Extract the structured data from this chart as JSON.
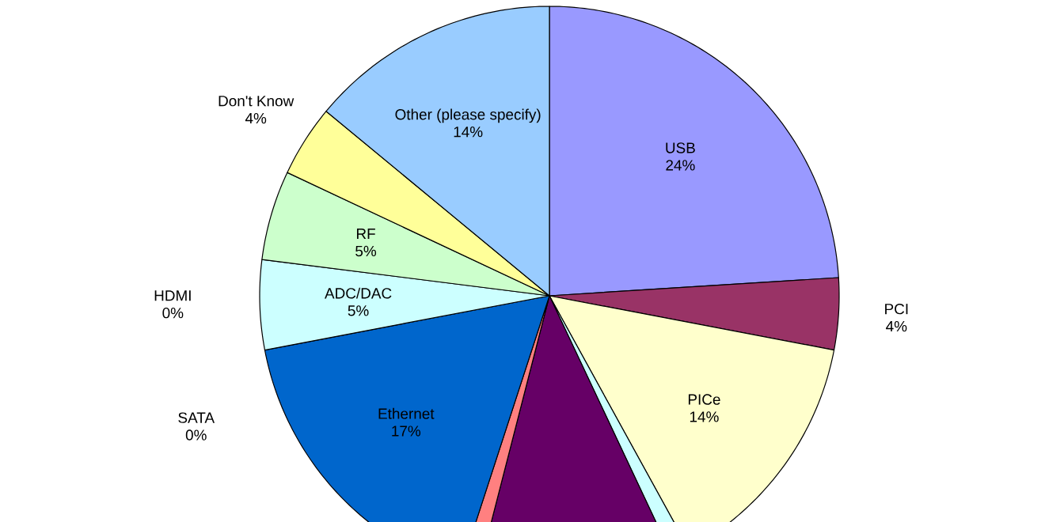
{
  "chart_data": {
    "type": "pie",
    "value_labels": [
      "24%",
      "4%",
      "14%",
      null,
      null,
      null,
      "17%",
      "0%",
      "0%",
      "5%",
      "5%",
      "4%",
      "14%"
    ],
    "categories": [
      "USB",
      "PCI",
      "PICe",
      null,
      null,
      null,
      "Ethernet",
      "SATA",
      "HDMI",
      "ADC/DAC",
      "RF",
      "Don't Know",
      "Other (please specify)"
    ],
    "values": [
      24,
      4,
      14,
      1,
      11,
      1,
      17,
      0,
      0,
      5,
      5,
      4,
      14
    ],
    "colors": [
      "#9999ff",
      "#993366",
      "#ffffcc",
      "#ccffff",
      "#660066",
      "#ff8080",
      "#0066cc",
      "#000080",
      "#ff00ff",
      "#ccffff",
      "#ccffcc",
      "#ffff99",
      "#99ccff"
    ]
  }
}
